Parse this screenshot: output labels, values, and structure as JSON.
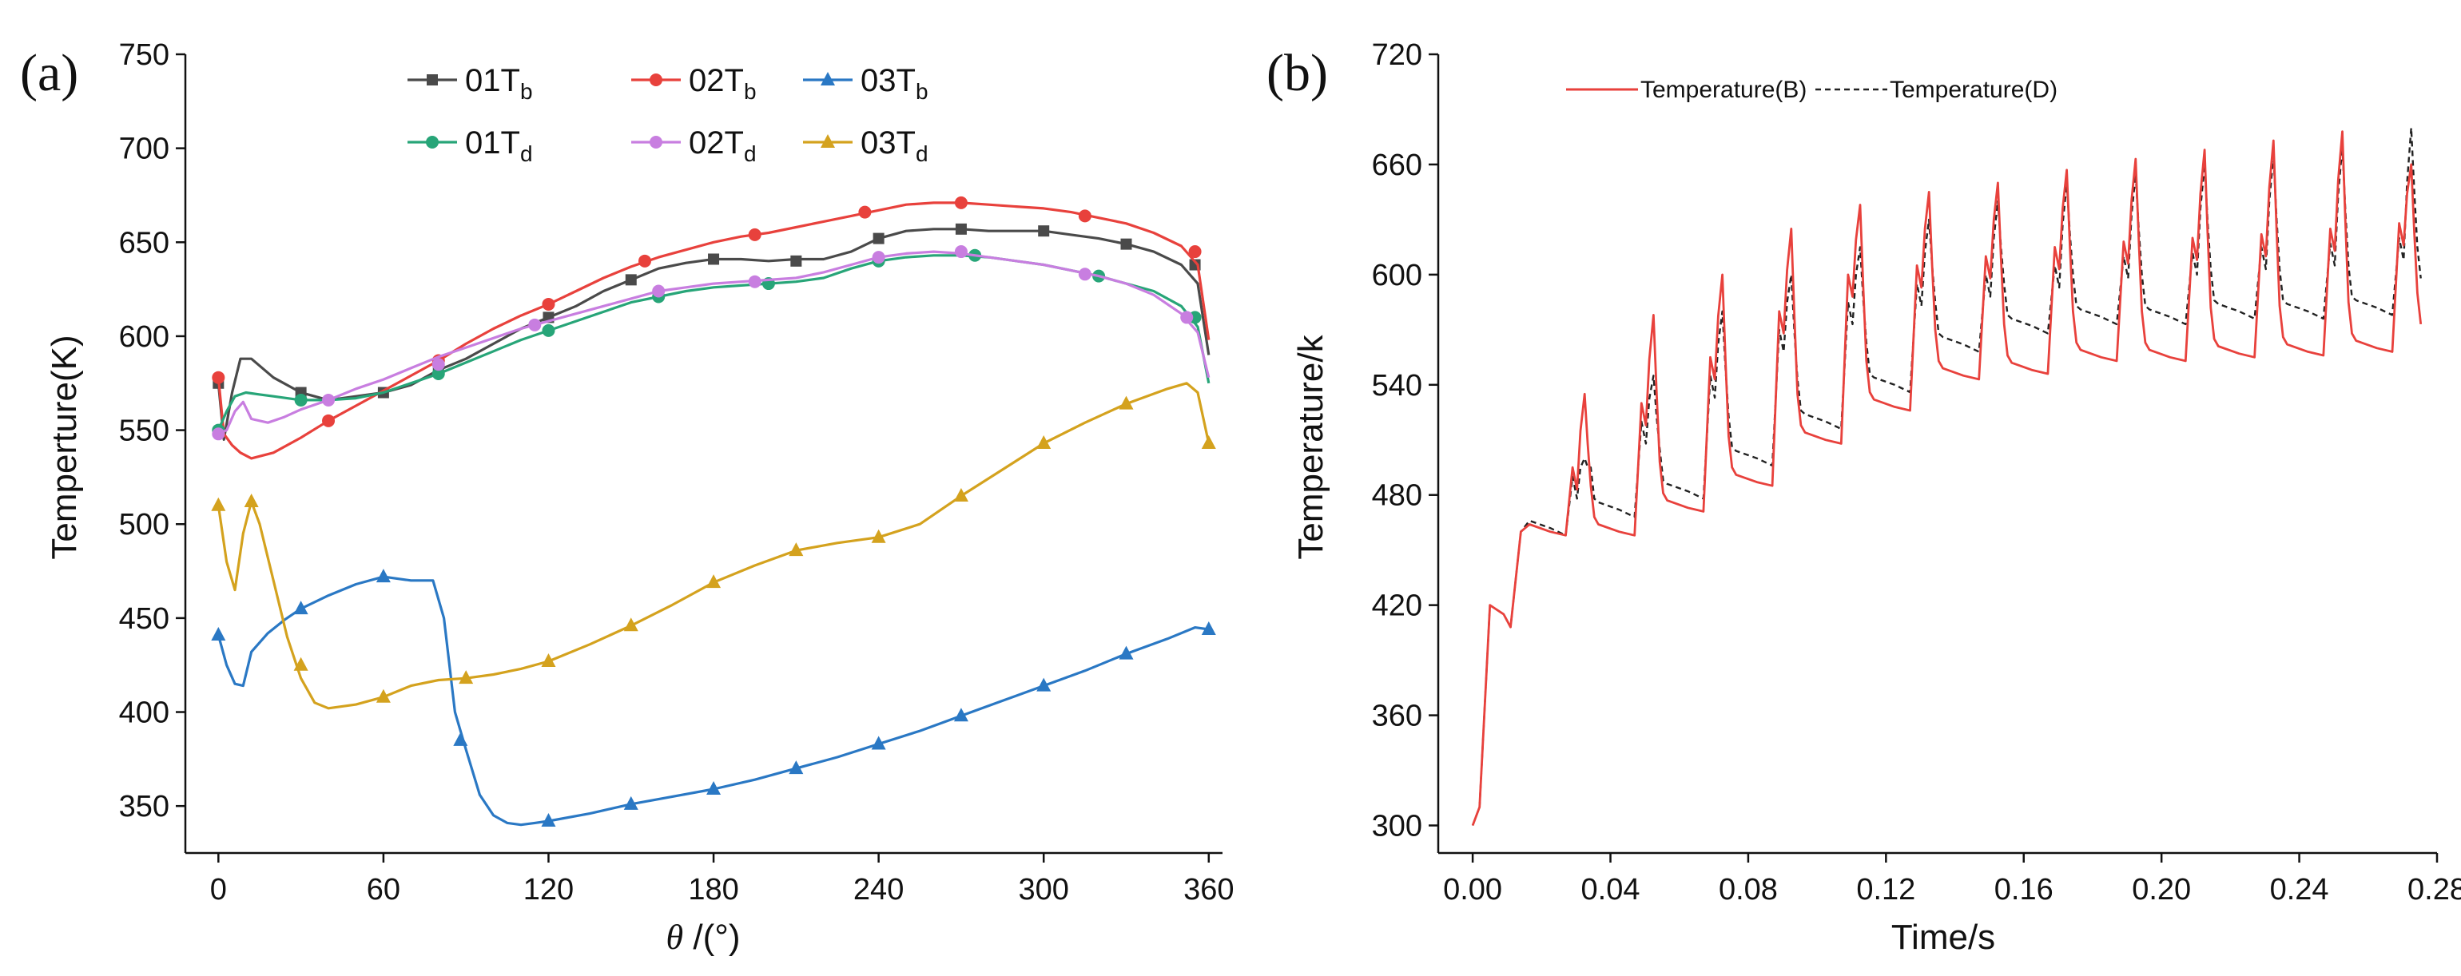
{
  "panels": {
    "a": {
      "letter": "(a)"
    },
    "b": {
      "letter": "(b)"
    }
  },
  "chart_data": [
    {
      "type": "line",
      "xlabel_symbol": "θ",
      "xlabel_unit": " /(°)",
      "ylabel": "Temperture(K)",
      "xlim": [
        -12,
        365
      ],
      "ylim": [
        325,
        750
      ],
      "xticks": [
        0,
        60,
        120,
        180,
        240,
        300,
        360
      ],
      "yticks": [
        350,
        400,
        450,
        500,
        550,
        600,
        650,
        700,
        750
      ],
      "legend_position": "top-center",
      "grid": false,
      "series": [
        {
          "name": "01Tb",
          "name_main": "01T",
          "name_sub": "b",
          "color": "#4a4a4a",
          "marker": "square",
          "x": [
            0,
            2,
            5,
            8,
            12,
            20,
            30,
            40,
            50,
            60,
            70,
            80,
            90,
            100,
            110,
            120,
            130,
            140,
            150,
            160,
            170,
            180,
            190,
            200,
            210,
            220,
            230,
            240,
            250,
            260,
            270,
            280,
            290,
            300,
            310,
            320,
            330,
            340,
            350,
            356,
            360
          ],
          "y": [
            575,
            545,
            570,
            588,
            588,
            578,
            570,
            566,
            568,
            570,
            574,
            582,
            588,
            596,
            604,
            610,
            616,
            624,
            630,
            636,
            639,
            641,
            641,
            640,
            641,
            641,
            645,
            652,
            656,
            657,
            657,
            656,
            656,
            656,
            654,
            652,
            649,
            645,
            638,
            628,
            590
          ],
          "markers_x": [
            0,
            30,
            60,
            80,
            120,
            150,
            180,
            210,
            240,
            270,
            300,
            330,
            355
          ],
          "markers_y": [
            575,
            570,
            570,
            582,
            610,
            630,
            641,
            640,
            652,
            657,
            656,
            649,
            638
          ]
        },
        {
          "name": "02Tb",
          "name_main": "02T",
          "name_sub": "b",
          "color": "#e8413c",
          "marker": "circle",
          "x": [
            0,
            2,
            5,
            8,
            12,
            20,
            30,
            40,
            50,
            60,
            70,
            80,
            90,
            100,
            110,
            120,
            130,
            140,
            150,
            160,
            170,
            180,
            190,
            200,
            210,
            220,
            230,
            240,
            250,
            260,
            270,
            280,
            290,
            300,
            310,
            320,
            330,
            340,
            350,
            356,
            360
          ],
          "y": [
            578,
            548,
            542,
            538,
            535,
            538,
            546,
            555,
            563,
            571,
            579,
            587,
            596,
            604,
            611,
            617,
            624,
            631,
            637,
            642,
            646,
            650,
            653,
            655,
            658,
            661,
            664,
            667,
            670,
            671,
            671,
            670,
            669,
            668,
            666,
            663,
            660,
            655,
            648,
            638,
            598
          ],
          "markers_x": [
            0,
            40,
            80,
            120,
            155,
            195,
            235,
            270,
            315,
            355
          ],
          "markers_y": [
            578,
            555,
            587,
            617,
            640,
            654,
            666,
            671,
            664,
            645
          ]
        },
        {
          "name": "03Tb",
          "name_main": "03T",
          "name_sub": "b",
          "color": "#2a78c4",
          "marker": "triangle",
          "x": [
            0,
            3,
            6,
            9,
            12,
            18,
            24,
            30,
            40,
            50,
            60,
            70,
            78,
            82,
            86,
            90,
            95,
            100,
            105,
            110,
            115,
            120,
            135,
            150,
            165,
            180,
            195,
            210,
            225,
            240,
            255,
            270,
            285,
            300,
            315,
            330,
            345,
            355,
            360
          ],
          "y": [
            441,
            425,
            415,
            414,
            432,
            442,
            449,
            455,
            462,
            468,
            472,
            470,
            470,
            450,
            400,
            380,
            356,
            345,
            341,
            340,
            341,
            342,
            346,
            351,
            355,
            359,
            364,
            370,
            376,
            383,
            390,
            398,
            406,
            414,
            422,
            431,
            439,
            445,
            444
          ],
          "markers_x": [
            0,
            30,
            60,
            88,
            120,
            150,
            180,
            210,
            240,
            270,
            300,
            330,
            360
          ],
          "markers_y": [
            441,
            455,
            472,
            385,
            342,
            351,
            359,
            370,
            383,
            398,
            414,
            431,
            444
          ]
        },
        {
          "name": "01Td",
          "name_main": "01T",
          "name_sub": "d",
          "color": "#27a578",
          "marker": "circle",
          "x": [
            0,
            3,
            6,
            10,
            15,
            20,
            30,
            40,
            50,
            60,
            70,
            80,
            90,
            100,
            110,
            120,
            130,
            140,
            150,
            160,
            170,
            180,
            190,
            200,
            210,
            220,
            230,
            240,
            250,
            260,
            270,
            280,
            290,
            300,
            310,
            320,
            330,
            340,
            350,
            356,
            360
          ],
          "y": [
            550,
            560,
            568,
            570,
            569,
            568,
            566,
            566,
            567,
            570,
            575,
            580,
            586,
            592,
            598,
            603,
            608,
            613,
            618,
            621,
            624,
            626,
            627,
            628,
            629,
            631,
            636,
            640,
            642,
            643,
            643,
            642,
            640,
            638,
            635,
            632,
            628,
            624,
            616,
            605,
            575
          ],
          "markers_x": [
            0,
            30,
            80,
            120,
            160,
            200,
            240,
            275,
            320,
            355
          ],
          "markers_y": [
            550,
            566,
            580,
            603,
            621,
            628,
            640,
            643,
            632,
            610
          ]
        },
        {
          "name": "02Td",
          "name_main": "02T",
          "name_sub": "d",
          "color": "#c87ee0",
          "marker": "circle",
          "x": [
            0,
            3,
            6,
            9,
            12,
            18,
            24,
            30,
            40,
            50,
            60,
            70,
            80,
            90,
            100,
            110,
            120,
            130,
            140,
            150,
            160,
            170,
            180,
            190,
            200,
            210,
            220,
            230,
            240,
            250,
            260,
            270,
            280,
            290,
            300,
            310,
            320,
            330,
            340,
            350,
            356,
            360
          ],
          "y": [
            548,
            550,
            560,
            565,
            556,
            554,
            557,
            561,
            566,
            572,
            577,
            583,
            589,
            594,
            599,
            604,
            608,
            612,
            616,
            620,
            624,
            626,
            628,
            629,
            630,
            631,
            634,
            638,
            642,
            644,
            645,
            644,
            642,
            640,
            638,
            635,
            632,
            628,
            622,
            612,
            602,
            578
          ],
          "markers_x": [
            0,
            40,
            80,
            115,
            160,
            195,
            240,
            270,
            315,
            352
          ],
          "markers_y": [
            548,
            566,
            585,
            606,
            624,
            629,
            642,
            645,
            633,
            610
          ]
        },
        {
          "name": "03Td",
          "name_main": "03T",
          "name_sub": "d",
          "color": "#d4a21e",
          "marker": "triangle",
          "x": [
            0,
            3,
            6,
            9,
            12,
            15,
            20,
            25,
            30,
            35,
            40,
            50,
            60,
            70,
            80,
            90,
            100,
            110,
            120,
            135,
            150,
            165,
            180,
            195,
            210,
            225,
            240,
            255,
            270,
            285,
            300,
            315,
            330,
            345,
            352,
            356,
            360
          ],
          "y": [
            510,
            480,
            465,
            495,
            512,
            500,
            470,
            440,
            418,
            405,
            402,
            404,
            408,
            414,
            417,
            418,
            420,
            423,
            427,
            436,
            446,
            457,
            469,
            478,
            486,
            490,
            493,
            500,
            515,
            529,
            543,
            554,
            564,
            572,
            575,
            570,
            543
          ],
          "markers_x": [
            0,
            12,
            30,
            60,
            90,
            120,
            150,
            180,
            210,
            240,
            270,
            300,
            330,
            360
          ],
          "markers_y": [
            510,
            512,
            425,
            408,
            418,
            427,
            446,
            469,
            486,
            493,
            515,
            543,
            564,
            543
          ]
        }
      ]
    },
    {
      "type": "line",
      "xlabel": "Time/s",
      "ylabel": "Temperature/k",
      "xlim": [
        -0.01,
        0.28
      ],
      "ylim": [
        285,
        720
      ],
      "xticks": [
        0.0,
        0.04,
        0.08,
        0.12,
        0.16,
        0.2,
        0.24,
        0.28
      ],
      "xtick_labels": [
        "0.00",
        "0.04",
        "0.08",
        "0.12",
        "0.16",
        "0.20",
        "0.24",
        "0.28"
      ],
      "yticks": [
        300,
        360,
        420,
        480,
        540,
        600,
        660,
        720
      ],
      "legend_position": "top-center",
      "grid": false,
      "series": [
        {
          "name": "Temperature(B)",
          "color": "#e8413c",
          "dash": "solid"
        },
        {
          "name": "Temperature(D)",
          "color": "#222222",
          "dash": "dashed"
        }
      ],
      "cycle": {
        "period": 0.02,
        "first_peak_time": 0.0325,
        "start": {
          "t": 0.0,
          "y": 300
        },
        "rise": [
          {
            "t": 0.002,
            "y": 310
          },
          {
            "t": 0.005,
            "y": 420
          },
          {
            "t": 0.009,
            "y": 415
          },
          {
            "t": 0.011,
            "y": 408
          },
          {
            "t": 0.014,
            "y": 460
          }
        ],
        "B_peaks": [
          535,
          578,
          600,
          625,
          638,
          645,
          650,
          657,
          663,
          668,
          673,
          678,
          660
        ],
        "B_pre_peaks": [
          495,
          530,
          555,
          580,
          600,
          605,
          610,
          615,
          618,
          620,
          622,
          625,
          628
        ],
        "B_troughs": [
          460,
          473,
          487,
          510,
          528,
          545,
          548,
          555,
          555,
          557,
          558,
          560,
          565
        ],
        "D_peaks": [
          500,
          545,
          580,
          600,
          615,
          630,
          640,
          650,
          655,
          660,
          665,
          670,
          680
        ],
        "D_pre_peaks": [
          490,
          520,
          545,
          570,
          585,
          595,
          600,
          605,
          610,
          612,
          615,
          617,
          620
        ],
        "D_troughs": [
          470,
          480,
          498,
          518,
          538,
          560,
          570,
          575,
          575,
          578,
          578,
          580,
          590
        ]
      }
    }
  ]
}
